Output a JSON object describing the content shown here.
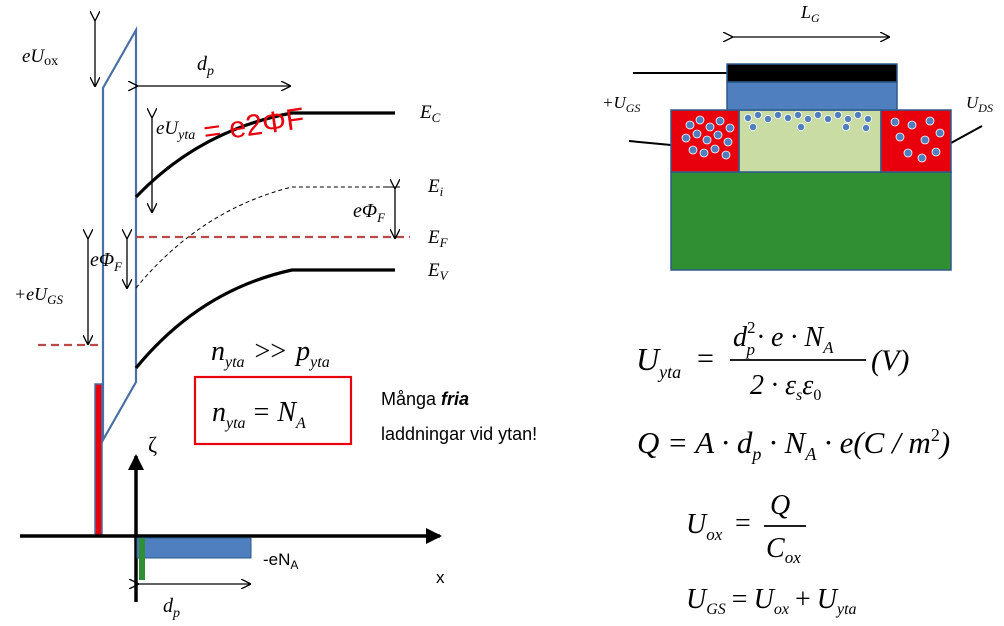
{
  "band_diagram": {
    "label_eUox": "eU",
    "label_eUox_sub": "ox",
    "label_dp_top": "d",
    "label_dp_top_sub": "p",
    "label_eUyta": "eU",
    "label_eUyta_sub": "yta",
    "handwritten_annotation": "= e2ΦF",
    "label_EC": "E",
    "label_EC_sub": "C",
    "label_Ei": "E",
    "label_Ei_sub": "i",
    "label_ePhiF_right": "eΦ",
    "label_ePhiF_right_sub": "F",
    "label_EF": "E",
    "label_EF_sub": "F",
    "label_ePhiF_left": "eΦ",
    "label_ePhiF_left_sub": "F",
    "label_EV": "E",
    "label_EV_sub": "V",
    "label_eUGS": "+eU",
    "label_eUGS_sub": "GS"
  },
  "charge_plot": {
    "label_zeta": "ζ",
    "label_eNA": "-eN",
    "label_eNA_sub": "A",
    "label_x": "x",
    "label_dp": "d",
    "label_dp_sub": "p"
  },
  "inversion": {
    "relation_lhs": "n",
    "relation_lhs_sub": "yta",
    "relation_op": ">>",
    "relation_rhs": "p",
    "relation_rhs_sub": "yta",
    "boxed_lhs": "n",
    "boxed_lhs_sub": "yta",
    "boxed_op": "=",
    "boxed_rhs": "N",
    "boxed_rhs_sub": "A",
    "note_line1_prefix": "Många ",
    "note_line1_emph": "fria",
    "note_line2": "laddningar vid ytan!"
  },
  "mosfet": {
    "label_LG": "L",
    "label_LG_sub": "G",
    "label_UGS": "+U",
    "label_UGS_sub": "GS",
    "label_UDS": "U",
    "label_UDS_sub": "DS"
  },
  "equations": {
    "uyta_lhs": "U",
    "uyta_lhs_sub": "yta",
    "uyta_eq": "=",
    "uyta_num": "d",
    "uyta_num_sup": "2",
    "uyta_num_sub": "p",
    "uyta_num_rest": "· e · N",
    "uyta_num_rest_sub": "A",
    "uyta_den": "2 · ε",
    "uyta_den_sub1": "s",
    "uyta_den_mid": "ε",
    "uyta_den_sub2": "0",
    "uyta_unit": "(V)",
    "q_text_a": "Q = A · d",
    "q_sub_p": "p",
    "q_text_b": " · N",
    "q_sub_a": "A",
    "q_text_c": " · e(C / m",
    "q_sup": "2",
    "q_text_d": ")",
    "uox_lhs": "U",
    "uox_lhs_sub": "ox",
    "uox_eq": "=",
    "uox_num": "Q",
    "uox_den": "C",
    "uox_den_sub": "ox",
    "ugs_lhs": "U",
    "ugs_lhs_sub": "GS",
    "ugs_eq": "=",
    "ugs_t1": "U",
    "ugs_t1_sub": "ox",
    "ugs_plus": "+",
    "ugs_t2": "U",
    "ugs_t2_sub": "yta"
  },
  "colors": {
    "oxide_outline": "#4a6fa5",
    "fermi_dashed": "#b94a48",
    "gate_metal_red": "#e8000d",
    "charge_blue": "#4f7fbf",
    "annotation_red": "#e8000d",
    "substrate_green": "#2f8f32",
    "channel_green": "#c8dca4",
    "gate_black": "#000000"
  }
}
